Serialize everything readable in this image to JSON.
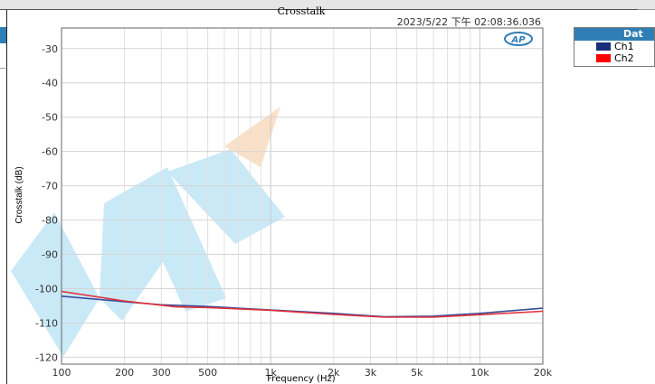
{
  "chart_data": {
    "type": "line",
    "title": "Crosstalk",
    "timestamp": "2023/5/22 下午 02:08:36.036",
    "xlabel": "Frequency (Hz)",
    "ylabel": "Crosstalk (dB)",
    "xscale": "log",
    "xlim": [
      100,
      20000
    ],
    "ylim": [
      -122,
      -24
    ],
    "x_ticks": [
      {
        "value": 100,
        "label": "100"
      },
      {
        "value": 200,
        "label": "200"
      },
      {
        "value": 300,
        "label": "300"
      },
      {
        "value": 500,
        "label": "500"
      },
      {
        "value": 1000,
        "label": "1k"
      },
      {
        "value": 2000,
        "label": "2k"
      },
      {
        "value": 3000,
        "label": "3k"
      },
      {
        "value": 5000,
        "label": "5k"
      },
      {
        "value": 10000,
        "label": "10k"
      },
      {
        "value": 20000,
        "label": "20k"
      }
    ],
    "y_ticks": [
      -30,
      -40,
      -50,
      -60,
      -70,
      -80,
      -90,
      -100,
      -110,
      -120
    ],
    "grid": true,
    "logo": "AP",
    "legend": {
      "title": "Dat",
      "position": "top-right-outside",
      "entries": [
        "Ch1",
        "Ch2"
      ]
    },
    "series": [
      {
        "name": "Ch1",
        "color": "#3a4f9a",
        "x": [
          100,
          200,
          300,
          500,
          1000,
          2000,
          3500,
          6000,
          10000,
          20000
        ],
        "y": [
          -102.2,
          -103.8,
          -104.7,
          -105.2,
          -106.2,
          -107.2,
          -108.2,
          -108.0,
          -107.2,
          -105.7
        ]
      },
      {
        "name": "Ch2",
        "color": "#e0303a",
        "x": [
          100,
          200,
          350,
          500,
          1000,
          2000,
          3500,
          6000,
          10000,
          20000
        ],
        "y": [
          -100.8,
          -103.6,
          -105.3,
          -105.5,
          -106.3,
          -107.5,
          -108.3,
          -108.3,
          -107.6,
          -106.6
        ]
      }
    ]
  }
}
